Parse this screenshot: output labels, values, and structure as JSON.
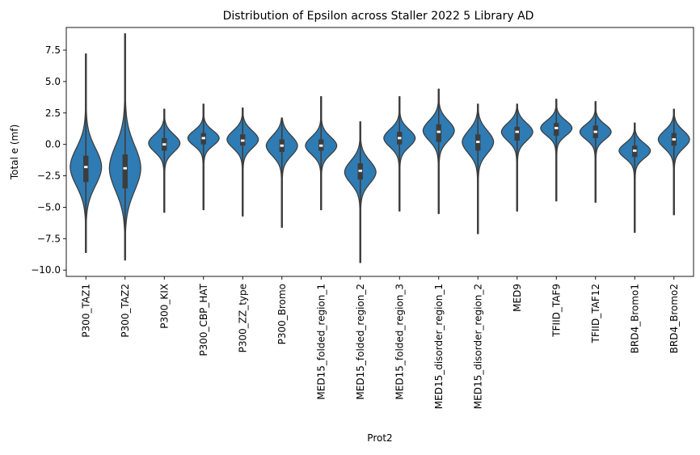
{
  "chart_data": {
    "type": "violin",
    "title": "Distribution of Epsilon across Staller 2022 5 Library AD",
    "xlabel": "Prot2",
    "ylabel": "Total e (mf)",
    "ylim": [
      -10.5,
      9.3
    ],
    "yticks": [
      -10.0,
      -7.5,
      -5.0,
      -2.5,
      0.0,
      2.5,
      5.0,
      7.5
    ],
    "ytick_labels": [
      "−10.0",
      "−7.5",
      "−5.0",
      "−2.5",
      "0.0",
      "2.5",
      "5.0",
      "7.5"
    ],
    "grid": false,
    "legend": "none",
    "color": "#2f7bb3",
    "categories": [
      {
        "name": "P300_TAZ1",
        "min": -8.6,
        "max": 7.2,
        "q1": -3.0,
        "median": -1.8,
        "q3": -0.9,
        "mode": -1.8,
        "spread": 1.5
      },
      {
        "name": "P300_TAZ2",
        "min": -9.2,
        "max": 8.8,
        "q1": -3.5,
        "median": -1.9,
        "q3": -0.8,
        "mode": -1.9,
        "spread": 1.8
      },
      {
        "name": "P300_KIX",
        "min": -5.4,
        "max": 2.8,
        "q1": -0.5,
        "median": 0.0,
        "q3": 0.5,
        "mode": 0.1,
        "spread": 0.7
      },
      {
        "name": "P300_CBP_HAT",
        "min": -5.2,
        "max": 3.2,
        "q1": 0.0,
        "median": 0.5,
        "q3": 0.9,
        "mode": 0.5,
        "spread": 0.6
      },
      {
        "name": "P300_ZZ_type",
        "min": -5.7,
        "max": 2.9,
        "q1": -0.1,
        "median": 0.3,
        "q3": 0.8,
        "mode": 0.4,
        "spread": 0.7
      },
      {
        "name": "P300_Bromo",
        "min": -6.6,
        "max": 2.1,
        "q1": -0.6,
        "median": -0.1,
        "q3": 0.4,
        "mode": -0.1,
        "spread": 0.8
      },
      {
        "name": "MED15_folded_region_1",
        "min": -5.2,
        "max": 3.8,
        "q1": -0.5,
        "median": -0.1,
        "q3": 0.4,
        "mode": -0.1,
        "spread": 0.7
      },
      {
        "name": "MED15_folded_region_2",
        "min": -9.4,
        "max": 1.8,
        "q1": -2.8,
        "median": -2.1,
        "q3": -1.5,
        "mode": -2.2,
        "spread": 0.9
      },
      {
        "name": "MED15_folded_region_3",
        "min": -5.3,
        "max": 3.8,
        "q1": 0.0,
        "median": 0.5,
        "q3": 1.0,
        "mode": 0.5,
        "spread": 0.7
      },
      {
        "name": "MED15_disorder_region_1",
        "min": -5.5,
        "max": 4.4,
        "q1": 0.2,
        "median": 1.0,
        "q3": 1.6,
        "mode": 1.1,
        "spread": 0.8
      },
      {
        "name": "MED15_disorder_region_2",
        "min": -7.1,
        "max": 3.2,
        "q1": -0.5,
        "median": 0.2,
        "q3": 0.8,
        "mode": 0.2,
        "spread": 0.9
      },
      {
        "name": "MED9",
        "min": -5.3,
        "max": 3.2,
        "q1": 0.3,
        "median": 1.0,
        "q3": 1.4,
        "mode": 1.0,
        "spread": 0.7
      },
      {
        "name": "TFIID_TAF9",
        "min": -4.5,
        "max": 3.6,
        "q1": 0.7,
        "median": 1.3,
        "q3": 1.7,
        "mode": 1.3,
        "spread": 0.6
      },
      {
        "name": "TFIID_TAF12",
        "min": -4.6,
        "max": 3.4,
        "q1": 0.5,
        "median": 1.0,
        "q3": 1.5,
        "mode": 1.0,
        "spread": 0.6
      },
      {
        "name": "BRD4_Bromo1",
        "min": -7.0,
        "max": 1.7,
        "q1": -1.0,
        "median": -0.5,
        "q3": -0.1,
        "mode": -0.5,
        "spread": 0.6
      },
      {
        "name": "BRD4_Bromo2",
        "min": -5.6,
        "max": 2.8,
        "q1": -0.1,
        "median": 0.4,
        "q3": 0.9,
        "mode": 0.4,
        "spread": 0.7
      }
    ]
  }
}
